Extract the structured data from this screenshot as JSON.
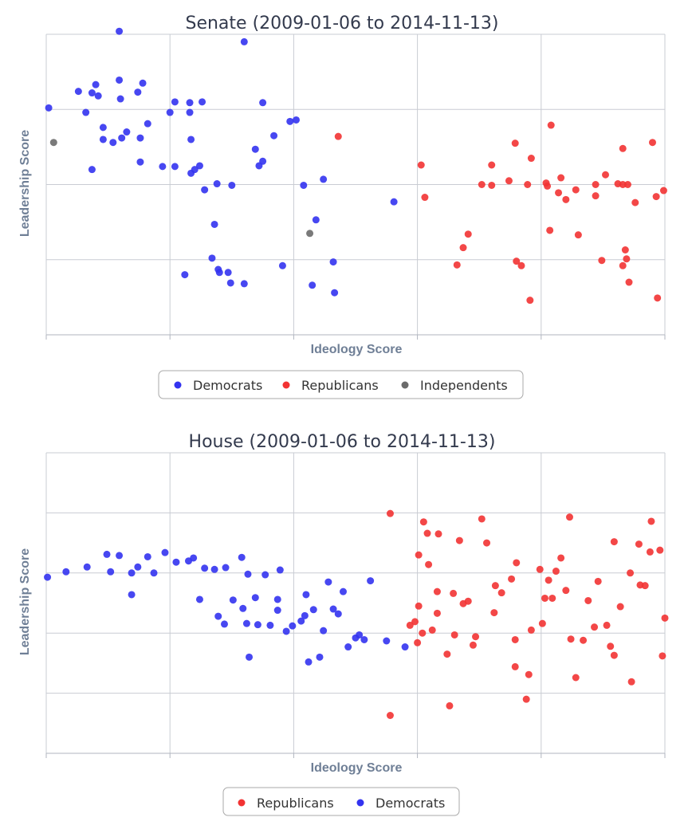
{
  "chart_data": [
    {
      "type": "scatter",
      "title": "Senate (2009-01-06 to 2014-11-13)",
      "xlabel": "Ideology Score",
      "ylabel": "Leadership Score",
      "xlim": [
        0,
        5
      ],
      "ylim": [
        0,
        4
      ],
      "grid": true,
      "legend": "bottom-center",
      "series": [
        {
          "name": "Democrats",
          "color": "#3333f0",
          "points": [
            [
              0.02,
              3.02
            ],
            [
              0.26,
              3.24
            ],
            [
              0.32,
              2.96
            ],
            [
              0.37,
              3.22
            ],
            [
              0.4,
              3.33
            ],
            [
              0.42,
              3.18
            ],
            [
              0.46,
              2.76
            ],
            [
              0.37,
              2.2
            ],
            [
              0.46,
              2.6
            ],
            [
              0.54,
              2.56
            ],
            [
              0.59,
              3.39
            ],
            [
              0.6,
              3.14
            ],
            [
              0.59,
              4.04
            ],
            [
              0.61,
              2.62
            ],
            [
              0.65,
              2.7
            ],
            [
              0.74,
              3.23
            ],
            [
              0.76,
              2.62
            ],
            [
              0.76,
              2.3
            ],
            [
              0.78,
              3.35
            ],
            [
              0.82,
              2.81
            ],
            [
              0.94,
              2.24
            ],
            [
              1.0,
              2.96
            ],
            [
              1.04,
              3.1
            ],
            [
              1.04,
              2.24
            ],
            [
              1.12,
              0.8
            ],
            [
              1.16,
              3.09
            ],
            [
              1.16,
              2.96
            ],
            [
              1.17,
              2.6
            ],
            [
              1.17,
              2.15
            ],
            [
              1.2,
              2.2
            ],
            [
              1.24,
              2.25
            ],
            [
              1.26,
              3.1
            ],
            [
              1.28,
              1.93
            ],
            [
              1.34,
              1.02
            ],
            [
              1.36,
              1.47
            ],
            [
              1.38,
              2.01
            ],
            [
              1.39,
              0.87
            ],
            [
              1.4,
              0.83
            ],
            [
              1.47,
              0.83
            ],
            [
              1.49,
              0.69
            ],
            [
              1.5,
              1.99
            ],
            [
              1.6,
              0.68
            ],
            [
              1.6,
              3.9
            ],
            [
              1.69,
              2.47
            ],
            [
              1.72,
              2.25
            ],
            [
              1.75,
              2.31
            ],
            [
              1.75,
              3.09
            ],
            [
              1.84,
              2.65
            ],
            [
              1.91,
              0.92
            ],
            [
              1.97,
              2.84
            ],
            [
              2.02,
              2.86
            ],
            [
              2.08,
              1.99
            ],
            [
              2.15,
              0.66
            ],
            [
              2.18,
              1.53
            ],
            [
              2.24,
              2.07
            ],
            [
              2.32,
              0.97
            ],
            [
              2.33,
              0.56
            ],
            [
              2.81,
              1.77
            ]
          ]
        },
        {
          "name": "Republicans",
          "color": "#f23333",
          "points": [
            [
              2.36,
              2.64
            ],
            [
              3.03,
              2.26
            ],
            [
              3.06,
              1.83
            ],
            [
              3.32,
              0.93
            ],
            [
              3.37,
              1.16
            ],
            [
              3.41,
              1.34
            ],
            [
              3.52,
              2.0
            ],
            [
              3.6,
              2.26
            ],
            [
              3.6,
              1.99
            ],
            [
              3.74,
              2.05
            ],
            [
              3.79,
              2.55
            ],
            [
              3.8,
              0.98
            ],
            [
              3.84,
              0.92
            ],
            [
              3.89,
              2.0
            ],
            [
              3.91,
              0.46
            ],
            [
              3.92,
              2.35
            ],
            [
              4.04,
              2.02
            ],
            [
              4.05,
              1.98
            ],
            [
              4.07,
              1.39
            ],
            [
              4.08,
              2.79
            ],
            [
              4.14,
              1.89
            ],
            [
              4.16,
              2.09
            ],
            [
              4.2,
              1.8
            ],
            [
              4.28,
              1.93
            ],
            [
              4.3,
              1.33
            ],
            [
              4.44,
              2.0
            ],
            [
              4.44,
              1.85
            ],
            [
              4.49,
              0.99
            ],
            [
              4.52,
              2.13
            ],
            [
              4.62,
              2.01
            ],
            [
              4.66,
              2.0
            ],
            [
              4.66,
              0.92
            ],
            [
              4.66,
              2.48
            ],
            [
              4.68,
              1.13
            ],
            [
              4.69,
              1.01
            ],
            [
              4.7,
              2.0
            ],
            [
              4.71,
              0.7
            ],
            [
              4.76,
              1.76
            ],
            [
              4.9,
              2.56
            ],
            [
              4.93,
              1.84
            ],
            [
              4.94,
              0.49
            ],
            [
              4.99,
              1.92
            ]
          ]
        },
        {
          "name": "Independents",
          "color": "#6b6b6b",
          "points": [
            [
              0.06,
              2.56
            ],
            [
              2.13,
              1.35
            ]
          ]
        }
      ]
    },
    {
      "type": "scatter",
      "title": "House (2009-01-06 to 2014-11-13)",
      "xlabel": "Ideology Score",
      "ylabel": "Leadership Score",
      "xlim": [
        0,
        5
      ],
      "ylim": [
        0,
        5
      ],
      "grid": true,
      "legend": "bottom-center",
      "series": [
        {
          "name": "Republicans",
          "color": "#f23333",
          "points": [
            [
              2.78,
              3.99
            ],
            [
              2.78,
              0.63
            ],
            [
              2.94,
              2.13
            ],
            [
              2.98,
              2.19
            ],
            [
              3.0,
              1.84
            ],
            [
              3.01,
              2.45
            ],
            [
              3.01,
              3.3
            ],
            [
              3.04,
              2.0
            ],
            [
              3.05,
              3.85
            ],
            [
              3.08,
              3.66
            ],
            [
              3.09,
              3.14
            ],
            [
              3.12,
              2.05
            ],
            [
              3.16,
              2.33
            ],
            [
              3.16,
              2.69
            ],
            [
              3.17,
              3.65
            ],
            [
              3.24,
              1.65
            ],
            [
              3.26,
              0.79
            ],
            [
              3.29,
              2.66
            ],
            [
              3.3,
              1.97
            ],
            [
              3.34,
              3.54
            ],
            [
              3.37,
              2.49
            ],
            [
              3.41,
              2.53
            ],
            [
              3.45,
              1.8
            ],
            [
              3.47,
              1.94
            ],
            [
              3.52,
              3.9
            ],
            [
              3.56,
              3.5
            ],
            [
              3.62,
              2.34
            ],
            [
              3.63,
              2.79
            ],
            [
              3.68,
              2.67
            ],
            [
              3.76,
              2.9
            ],
            [
              3.79,
              1.89
            ],
            [
              3.79,
              1.44
            ],
            [
              3.8,
              3.17
            ],
            [
              3.88,
              0.9
            ],
            [
              3.9,
              1.31
            ],
            [
              3.92,
              2.05
            ],
            [
              3.99,
              3.06
            ],
            [
              4.01,
              2.16
            ],
            [
              4.03,
              2.58
            ],
            [
              4.06,
              2.88
            ],
            [
              4.09,
              2.58
            ],
            [
              4.12,
              3.03
            ],
            [
              4.16,
              3.25
            ],
            [
              4.2,
              2.71
            ],
            [
              4.23,
              3.93
            ],
            [
              4.24,
              1.9
            ],
            [
              4.28,
              1.26
            ],
            [
              4.34,
              1.88
            ],
            [
              4.38,
              2.54
            ],
            [
              4.43,
              2.1
            ],
            [
              4.46,
              2.86
            ],
            [
              4.53,
              2.13
            ],
            [
              4.56,
              1.78
            ],
            [
              4.59,
              1.63
            ],
            [
              4.59,
              3.52
            ],
            [
              4.64,
              2.44
            ],
            [
              4.72,
              3.0
            ],
            [
              4.73,
              1.19
            ],
            [
              4.79,
              3.48
            ],
            [
              4.8,
              2.8
            ],
            [
              4.84,
              2.79
            ],
            [
              4.88,
              3.35
            ],
            [
              4.89,
              3.86
            ],
            [
              4.96,
              3.38
            ],
            [
              4.98,
              1.62
            ],
            [
              5.0,
              2.25
            ]
          ]
        },
        {
          "name": "Democrats",
          "color": "#3333f0",
          "points": [
            [
              0.01,
              2.93
            ],
            [
              0.16,
              3.02
            ],
            [
              0.33,
              3.1
            ],
            [
              0.49,
              3.31
            ],
            [
              0.52,
              3.02
            ],
            [
              0.59,
              3.29
            ],
            [
              0.69,
              3.0
            ],
            [
              0.69,
              2.64
            ],
            [
              0.74,
              3.1
            ],
            [
              0.82,
              3.27
            ],
            [
              0.87,
              3.0
            ],
            [
              0.96,
              3.34
            ],
            [
              1.05,
              3.18
            ],
            [
              1.15,
              3.2
            ],
            [
              1.19,
              3.25
            ],
            [
              1.24,
              2.56
            ],
            [
              1.28,
              3.08
            ],
            [
              1.36,
              3.06
            ],
            [
              1.39,
              2.28
            ],
            [
              1.44,
              2.15
            ],
            [
              1.45,
              3.09
            ],
            [
              1.51,
              2.55
            ],
            [
              1.58,
              3.26
            ],
            [
              1.59,
              2.41
            ],
            [
              1.62,
              2.16
            ],
            [
              1.63,
              2.98
            ],
            [
              1.64,
              1.6
            ],
            [
              1.69,
              2.59
            ],
            [
              1.71,
              2.14
            ],
            [
              1.77,
              2.97
            ],
            [
              1.81,
              2.13
            ],
            [
              1.87,
              2.56
            ],
            [
              1.87,
              2.38
            ],
            [
              1.89,
              3.05
            ],
            [
              1.94,
              2.03
            ],
            [
              1.99,
              2.12
            ],
            [
              2.06,
              2.2
            ],
            [
              2.09,
              2.29
            ],
            [
              2.1,
              2.64
            ],
            [
              2.12,
              1.52
            ],
            [
              2.16,
              2.39
            ],
            [
              2.21,
              1.6
            ],
            [
              2.24,
              2.04
            ],
            [
              2.28,
              2.85
            ],
            [
              2.32,
              2.4
            ],
            [
              2.36,
              2.32
            ],
            [
              2.4,
              2.69
            ],
            [
              2.44,
              1.77
            ],
            [
              2.5,
              1.92
            ],
            [
              2.53,
              1.97
            ],
            [
              2.57,
              1.89
            ],
            [
              2.62,
              2.87
            ],
            [
              2.75,
              1.87
            ],
            [
              2.9,
              1.77
            ]
          ]
        }
      ]
    }
  ]
}
